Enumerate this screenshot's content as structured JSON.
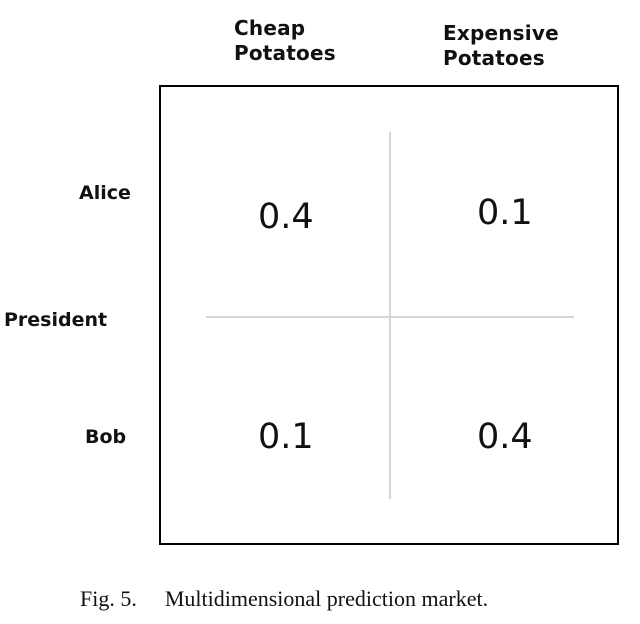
{
  "columns": [
    {
      "line1": "Cheap",
      "line2": "Potatoes"
    },
    {
      "line1": "Expensive",
      "line2": "Potatoes"
    }
  ],
  "rows": {
    "alice": "Alice",
    "president": "President",
    "bob": "Bob"
  },
  "cells": {
    "alice_cheap": "0.4",
    "alice_expensive": "0.1",
    "bob_cheap": "0.1",
    "bob_expensive": "0.4"
  },
  "caption": {
    "label": "Fig. 5.",
    "text": "Multidimensional prediction market."
  }
}
